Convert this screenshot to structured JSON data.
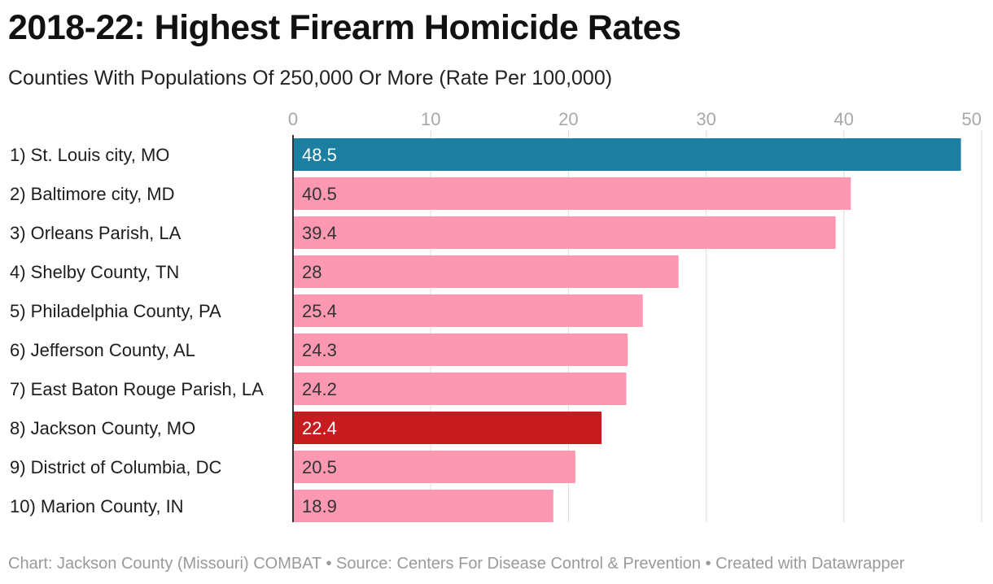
{
  "chart_data": {
    "type": "bar",
    "orientation": "horizontal",
    "title": "2018-22: Highest Firearm Homicide Rates",
    "subtitle": "Counties With Populations Of 250,000 Or More (Rate Per 100,000)",
    "categories": [
      "1) St. Louis city, MO",
      "2) Baltimore city, MD",
      "3) Orleans Parish, LA",
      "4) Shelby County, TN",
      "5) Philadelphia County, PA",
      "6) Jefferson County, AL",
      "7) East Baton Rouge Parish, LA",
      "8) Jackson County, MO",
      "9) District of Columbia, DC",
      "10) Marion County, IN"
    ],
    "values": [
      48.5,
      40.5,
      39.4,
      28,
      25.4,
      24.3,
      24.2,
      22.4,
      20.5,
      18.9
    ],
    "value_labels": [
      "48.5",
      "40.5",
      "39.4",
      "28",
      "25.4",
      "24.3",
      "24.2",
      "22.4",
      "20.5",
      "18.9"
    ],
    "bar_colors": [
      "#1c7fa1",
      "#fd98b3",
      "#fd98b3",
      "#fd98b3",
      "#fd98b3",
      "#fd98b3",
      "#fd98b3",
      "#c71c1f",
      "#fd98b3",
      "#fd98b3"
    ],
    "label_colors": [
      "#ffffff",
      "#333333",
      "#333333",
      "#333333",
      "#333333",
      "#333333",
      "#333333",
      "#ffffff",
      "#333333",
      "#333333"
    ],
    "xlim": [
      0,
      50
    ],
    "xticks": [
      0,
      10,
      20,
      30,
      40,
      50
    ],
    "xtick_labels": [
      "0",
      "10",
      "20",
      "30",
      "40",
      "50"
    ],
    "xlabel": "",
    "ylabel": "",
    "grid": true,
    "axis_position": "top",
    "legend": "none"
  },
  "footer": {
    "text": "Chart: Jackson County (Missouri) COMBAT • Source: Centers For Disease Control & Prevention • Created with Datawrapper"
  },
  "colors": {
    "grid": "#dddddd",
    "axis": "#333333"
  }
}
